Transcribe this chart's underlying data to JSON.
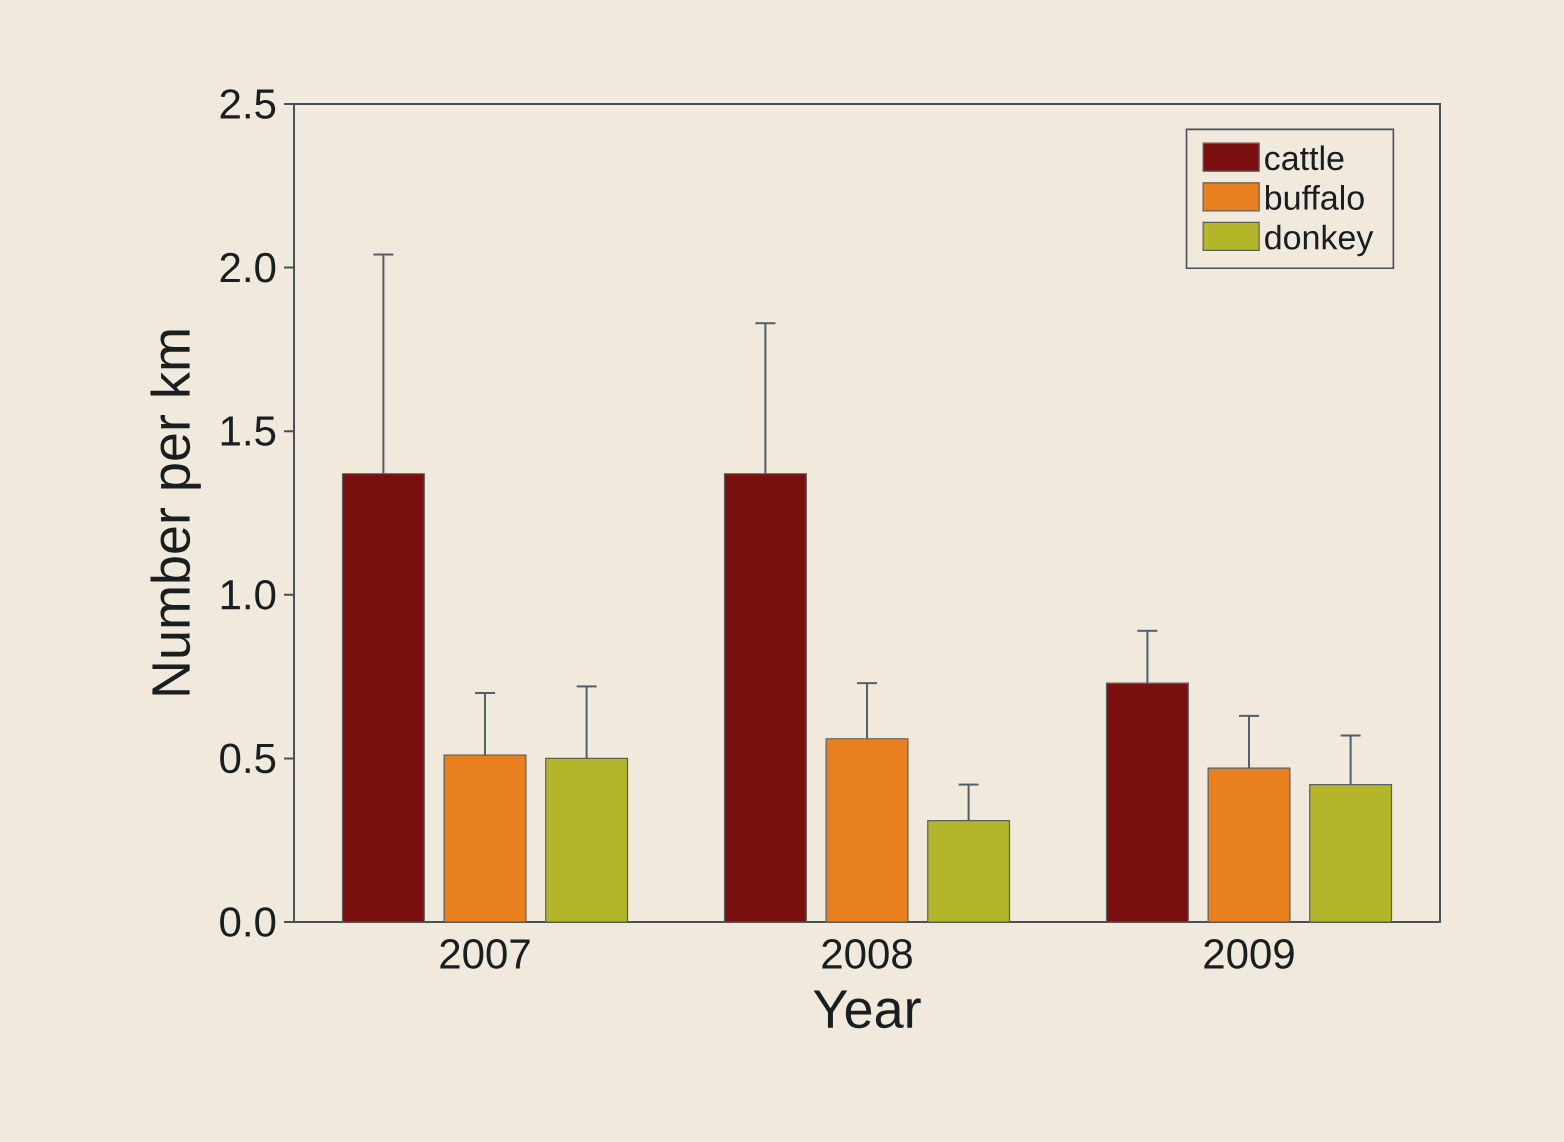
{
  "chart_data": {
    "type": "bar",
    "xlabel": "Year",
    "ylabel": "Number per km",
    "categories": [
      "2007",
      "2008",
      "2009"
    ],
    "series": [
      {
        "name": "cattle",
        "color": "#7a0f10",
        "values": [
          1.37,
          1.37,
          0.73
        ],
        "errors": [
          [
            1.37,
            2.04
          ],
          [
            1.37,
            1.83
          ],
          [
            0.73,
            0.89
          ]
        ]
      },
      {
        "name": "buffalo",
        "color": "#e9801f",
        "values": [
          0.51,
          0.56,
          0.47
        ],
        "errors": [
          [
            0.51,
            0.7
          ],
          [
            0.56,
            0.73
          ],
          [
            0.47,
            0.63
          ]
        ]
      },
      {
        "name": "donkey",
        "color": "#b3b62a",
        "values": [
          0.5,
          0.31,
          0.42
        ],
        "errors": [
          [
            0.5,
            0.72
          ],
          [
            0.31,
            0.42
          ],
          [
            0.42,
            0.57
          ]
        ]
      }
    ],
    "ylim": [
      0,
      2.5
    ],
    "yticks": [
      {
        "value": 0,
        "label": "0.0"
      },
      0.5,
      {
        "value": 1,
        "label": "1.0"
      },
      1.5,
      {
        "value": 2,
        "label": "2.0"
      },
      2.5
    ],
    "legend": "top right",
    "grid": false
  }
}
